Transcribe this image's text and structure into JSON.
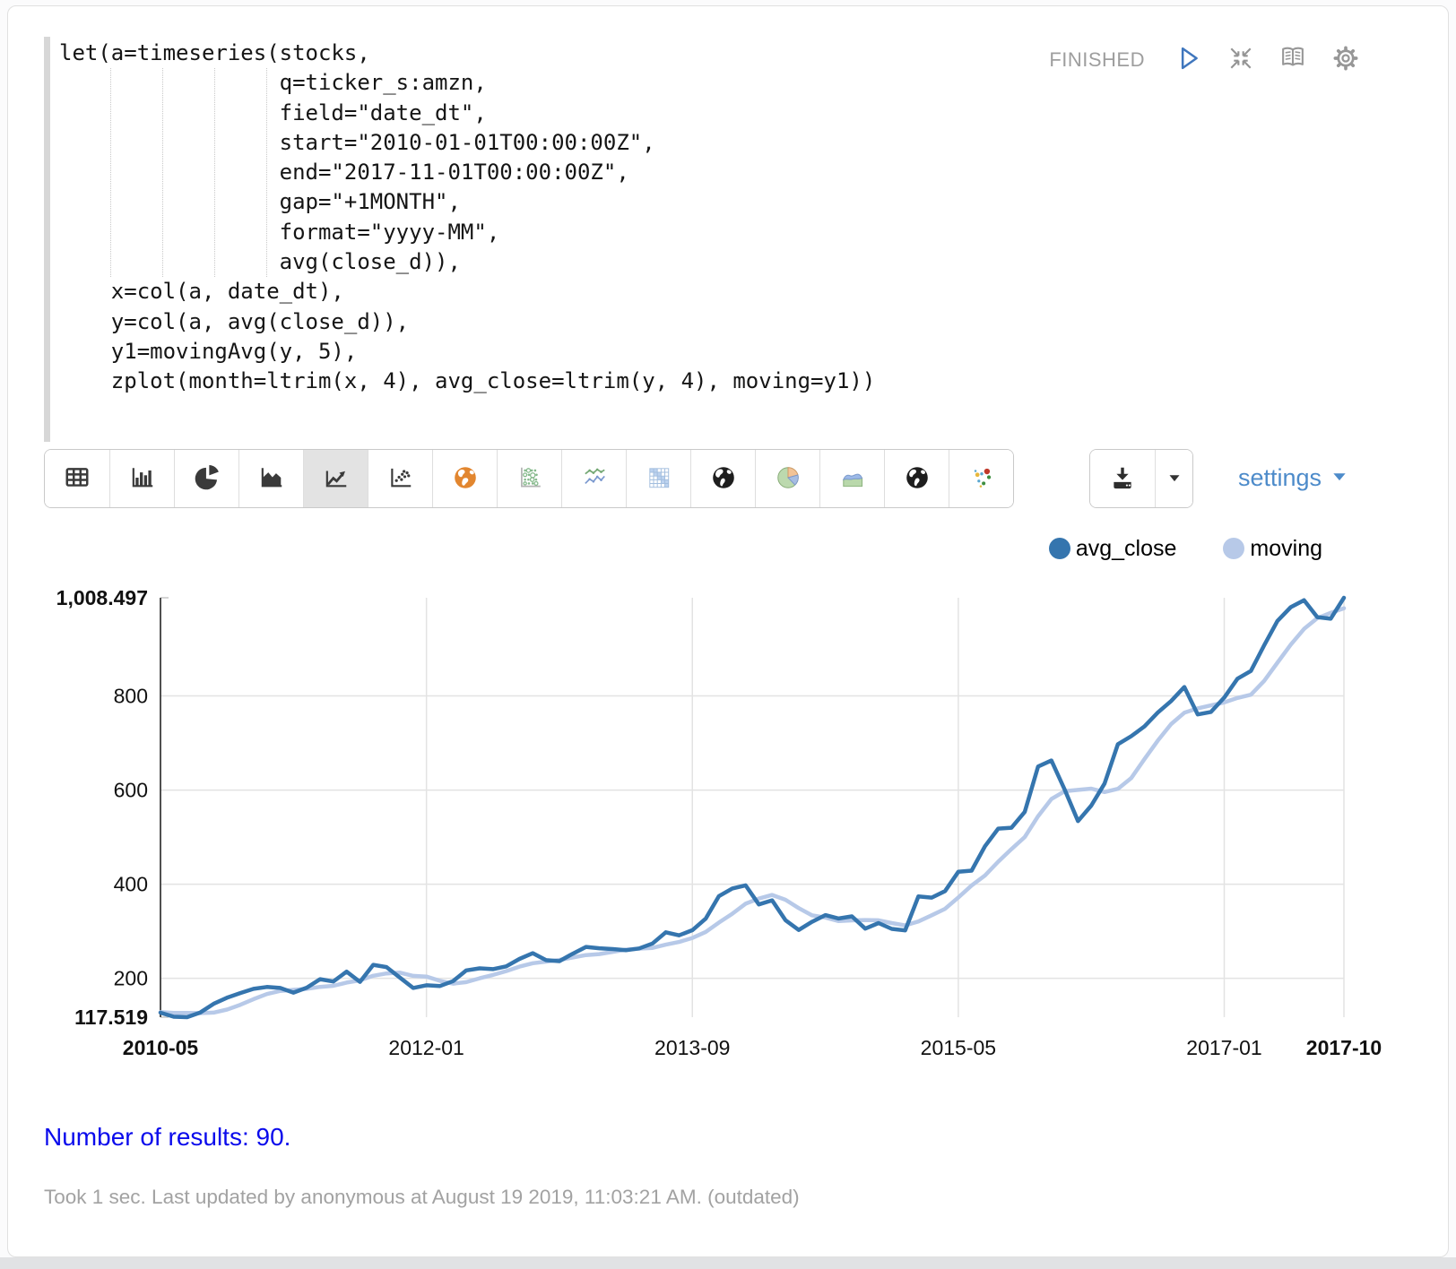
{
  "paragraph": {
    "status": "FINISHED",
    "code_lines": [
      "let(a=timeseries(stocks,",
      "                 q=ticker_s:amzn,",
      "                 field=\"date_dt\",",
      "                 start=\"2010-01-01T00:00:00Z\",",
      "                 end=\"2017-11-01T00:00:00Z\",",
      "                 gap=\"+1MONTH\",",
      "                 format=\"yyyy-MM\",",
      "                 avg(close_d)),",
      "    x=col(a, date_dt),",
      "    y=col(a, avg(close_d)),",
      "    y1=movingAvg(y, 5),",
      "    zplot(month=ltrim(x, 4), avg_close=ltrim(y, 4), moving=y1))"
    ]
  },
  "toolbar": {
    "chart_types": [
      "table",
      "bar-chart",
      "pie-chart",
      "area-chart",
      "line-chart",
      "scatter-plot",
      "world-map-orange",
      "dot-matrix",
      "multi-line-chart",
      "heatmap",
      "globe-dark-1",
      "colored-pie-chart",
      "colored-area-chart",
      "globe-dark-2",
      "colored-scatter"
    ],
    "selected_chart_type": "line-chart",
    "settings_label": "settings"
  },
  "results": {
    "text": "Number of results: 90."
  },
  "footer": {
    "text": "Took 1 sec. Last updated by anonymous at August 19 2019, 11:03:21 AM. (outdated)"
  },
  "colors": {
    "avg_close": "#3575ae",
    "moving": "#b7c9e8",
    "link_blue": "#4d8bca",
    "results_blue": "#0b0bec"
  },
  "chart_data": {
    "type": "line",
    "title": "",
    "xlabel": "",
    "ylabel": "",
    "grid": true,
    "legend_position": "top-right",
    "ylim": [
      117.519,
      1008.497
    ],
    "y_min_label": "117.519",
    "y_max_label": "1,008.497",
    "y_ticks": [
      200,
      400,
      600,
      800
    ],
    "x_tick_indices": [
      0,
      20,
      40,
      60,
      80,
      89
    ],
    "x": [
      "2010-05",
      "2010-06",
      "2010-07",
      "2010-08",
      "2010-09",
      "2010-10",
      "2010-11",
      "2010-12",
      "2011-01",
      "2011-02",
      "2011-03",
      "2011-04",
      "2011-05",
      "2011-06",
      "2011-07",
      "2011-08",
      "2011-09",
      "2011-10",
      "2011-11",
      "2011-12",
      "2012-01",
      "2012-02",
      "2012-03",
      "2012-04",
      "2012-05",
      "2012-06",
      "2012-07",
      "2012-08",
      "2012-09",
      "2012-10",
      "2012-11",
      "2012-12",
      "2013-01",
      "2013-02",
      "2013-03",
      "2013-04",
      "2013-05",
      "2013-06",
      "2013-07",
      "2013-08",
      "2013-09",
      "2013-10",
      "2013-11",
      "2013-12",
      "2014-01",
      "2014-02",
      "2014-03",
      "2014-04",
      "2014-05",
      "2014-06",
      "2014-07",
      "2014-08",
      "2014-09",
      "2014-10",
      "2014-11",
      "2014-12",
      "2015-01",
      "2015-02",
      "2015-03",
      "2015-04",
      "2015-05",
      "2015-06",
      "2015-07",
      "2015-08",
      "2015-09",
      "2015-10",
      "2015-11",
      "2015-12",
      "2016-01",
      "2016-02",
      "2016-03",
      "2016-04",
      "2016-05",
      "2016-06",
      "2016-07",
      "2016-08",
      "2016-09",
      "2016-10",
      "2016-11",
      "2016-12",
      "2017-01",
      "2017-02",
      "2017-03",
      "2017-04",
      "2017-05",
      "2017-06",
      "2017-07",
      "2017-08",
      "2017-09",
      "2017-10"
    ],
    "series": [
      {
        "name": "avg_close",
        "color": "#3575ae",
        "values": [
          127.0,
          118.5,
          117.519,
          127.6,
          145.9,
          158.8,
          168.7,
          177.7,
          181.7,
          179.5,
          169.7,
          180.1,
          198.2,
          193.3,
          214.2,
          192.6,
          228.7,
          223.9,
          201.7,
          179.6,
          185.2,
          183.6,
          194.1,
          216.9,
          221.2,
          219.5,
          225.5,
          241.2,
          253.4,
          238.6,
          236.6,
          252.4,
          266.7,
          263.9,
          262.2,
          259.7,
          263.6,
          274.1,
          297.8,
          291.3,
          302.4,
          326.8,
          374.7,
          390.9,
          397.5,
          357.0,
          365.7,
          323.5,
          302.8,
          320.1,
          334.3,
          327.2,
          331.7,
          305.7,
          317.5,
          305.1,
          301.9,
          374.1,
          371.5,
          385.3,
          426.3,
          428.7,
          480.5,
          518.1,
          520.0,
          553.7,
          650.0,
          662.8,
          601.0,
          534.0,
          567.0,
          613.9,
          697.5,
          714.3,
          735.1,
          764.6,
          788.9,
          818.8,
          760.7,
          766.0,
          796.4,
          836.5,
          853.0,
          907.4,
          959.2,
          988.5,
          1003.3,
          967.3,
          963.9,
          1008.497
        ]
      },
      {
        "name": "moving",
        "color": "#b7c9e8",
        "values": [
          128.2,
          126.5,
          126.4,
          126.1,
          127.3,
          133.7,
          143.7,
          155.7,
          166.6,
          173.3,
          175.5,
          177.7,
          181.8,
          184.2,
          191.1,
          195.7,
          205.4,
          210.5,
          212.2,
          205.3,
          203.8,
          194.8,
          188.8,
          191.9,
          200.2,
          207.1,
          215.4,
          224.9,
          232.2,
          235.6,
          239.1,
          244.4,
          249.5,
          251.6,
          256.4,
          261.0,
          263.2,
          264.7,
          271.5,
          277.3,
          285.8,
          298.5,
          318.6,
          337.2,
          358.5,
          369.4,
          377.2,
          366.9,
          349.3,
          333.8,
          329.3,
          321.6,
          323.2,
          323.8,
          323.3,
          317.4,
          312.4,
          320.9,
          334.0,
          347.6,
          371.8,
          397.2,
          418.5,
          447.8,
          474.7,
          500.2,
          544.5,
          580.9,
          597.5,
          600.3,
          603.0,
          595.7,
          602.7,
          625.3,
          665.6,
          705.1,
          740.1,
          764.3,
          773.6,
          779.8,
          786.2,
          795.7,
          802.5,
          831.9,
          870.5,
          908.9,
          942.3,
          965.1,
          976.4,
          986.3
        ]
      }
    ]
  }
}
